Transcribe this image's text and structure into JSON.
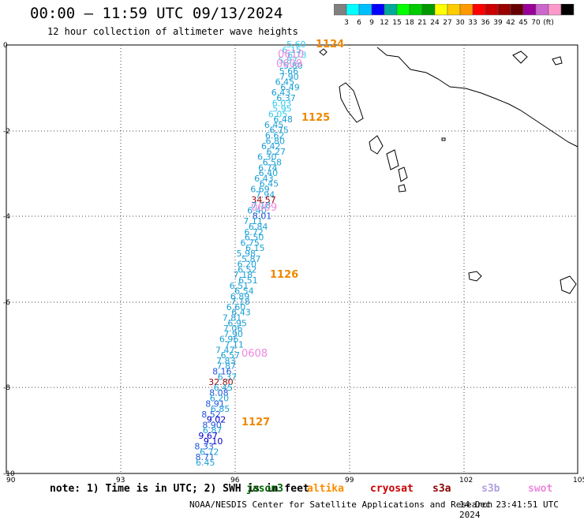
{
  "header": {
    "title": "00:00 — 11:59 UTC 09/13/2024",
    "subtitle": "12 hour collection of altimeter wave heights"
  },
  "colorbar": {
    "colors": [
      "#808080",
      "#00ffff",
      "#00bfff",
      "#0000ff",
      "#00aa9a",
      "#00ff00",
      "#00cc00",
      "#009900",
      "#ffff00",
      "#ffcc00",
      "#ff9900",
      "#ff0000",
      "#cc0000",
      "#990000",
      "#660000",
      "#990099",
      "#cc66cc",
      "#ff99cc",
      "#000000"
    ],
    "labels": [
      "3",
      "6",
      "9",
      "12",
      "15",
      "18",
      "21",
      "24",
      "27",
      "30",
      "33",
      "36",
      "39",
      "42",
      "45",
      "70",
      "(ft)"
    ]
  },
  "axes": {
    "x_ticks": [
      "90",
      "93",
      "96",
      "99",
      "102",
      "105"
    ],
    "y_ticks": [
      "0",
      "-2",
      "-4",
      "-6",
      "-8",
      "-10"
    ]
  },
  "time_labels": [
    "1124",
    "1125",
    "1126",
    "1127"
  ],
  "pass_labels": [
    "0610",
    "0609",
    "0609",
    "0608"
  ],
  "values": [
    "5.60",
    "6.15",
    "6.78",
    "5.87",
    "5.80",
    "5.66",
    "7.90",
    "6.45",
    "6.49",
    "6.43",
    "6.37",
    "6.03",
    "5.95",
    "6.05",
    "6.48",
    "6.45",
    "6.75",
    "6.62",
    "6.80",
    "6.42",
    "6.27",
    "6.30",
    "6.58",
    "6.74",
    "6.40",
    "6.43",
    "6.45",
    "6.69",
    "7.94",
    "34.57",
    "7.18",
    "6.40",
    "8.01",
    "7.11",
    "6.84",
    "6.72",
    "6.50",
    "6.75",
    "6.15",
    "5.98",
    "5.87",
    "6.20",
    "6.52",
    "7.18",
    "6.51",
    "6.51",
    "6.54",
    "6.89",
    "7.18",
    "6.60",
    "6.43",
    "7.81",
    "6.95",
    "7.06",
    "7.90",
    "6.96",
    "7.11",
    "7.47",
    "6.57",
    "7.83",
    "7.87",
    "8.16",
    "6.37",
    "32.80",
    "6.45",
    "8.08",
    "6.20",
    "8.91",
    "6.85",
    "8.52",
    "9.02",
    "8.90",
    "6.87",
    "9.67",
    "9.10",
    "8.33",
    "6.72",
    "8.71",
    "6.45"
  ],
  "note": {
    "text": "note: 1) Time is in UTC; 2) SWH is in feet",
    "satellites": [
      {
        "name": "jason3",
        "color": "#006400"
      },
      {
        "name": "altika",
        "color": "#ff8c00"
      },
      {
        "name": "cryosat",
        "color": "#cc0000"
      },
      {
        "name": "s3a",
        "color": "#8b0000"
      },
      {
        "name": "s3b",
        "color": "#b0a0e0"
      },
      {
        "name": "swot",
        "color": "#ee88dd"
      }
    ]
  },
  "footer": {
    "credit": "NOAA/NESDIS Center for Satellite Applications and Research",
    "timestamp": "14 Dec 23:41:51 UTC 2024"
  }
}
